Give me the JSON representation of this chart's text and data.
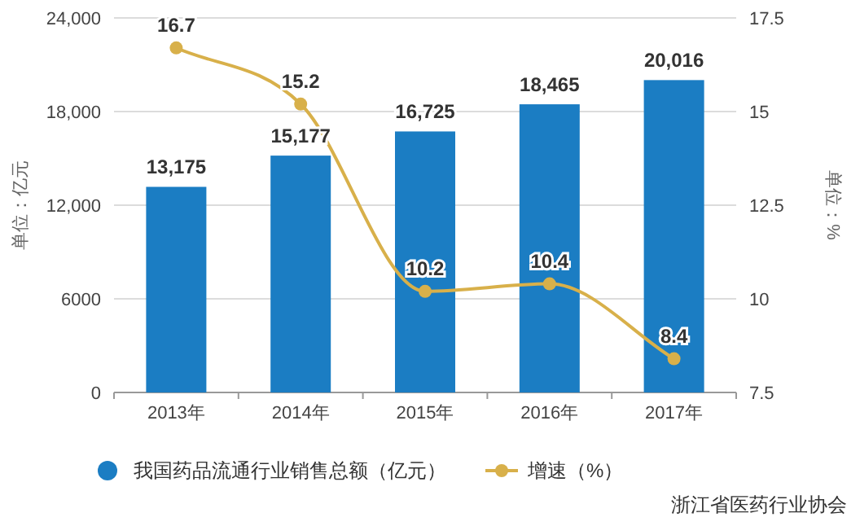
{
  "chart_data": {
    "type": "bar",
    "categories": [
      "2013年",
      "2014年",
      "2015年",
      "2016年",
      "2017年"
    ],
    "series": [
      {
        "name": "我国药品流通行业销售总额（亿元）",
        "color": "#1b7dc3",
        "values": [
          13175,
          15177,
          16725,
          18465,
          20016
        ],
        "value_labels": [
          "13,175",
          "15,177",
          "16,725",
          "18,465",
          "20,016"
        ]
      },
      {
        "name": "增速（%）",
        "type": "line",
        "axis": "y2",
        "color": "#d8b04a",
        "marker": "circle",
        "values": [
          16.7,
          15.2,
          10.2,
          10.4,
          8.4
        ],
        "value_labels": [
          "16.7",
          "15.2",
          "10.2",
          "10.4",
          "8.4"
        ]
      }
    ],
    "ylim": [
      0,
      24000
    ],
    "yticks": [
      0,
      6000,
      {
        "value": 12000,
        "label": "12,000"
      },
      {
        "value": 18000,
        "label": "18,000"
      },
      {
        "value": 24000,
        "label": "24,000"
      }
    ],
    "y2lim": [
      7.5,
      17.5
    ],
    "y2ticks": [
      7.5,
      10,
      12.5,
      15,
      17.5
    ],
    "ylabel": "单位：亿元",
    "y2label": "单位：%",
    "grid": "y",
    "legend": "bottom",
    "annotations": [
      "浙江省医药行业协会"
    ]
  }
}
